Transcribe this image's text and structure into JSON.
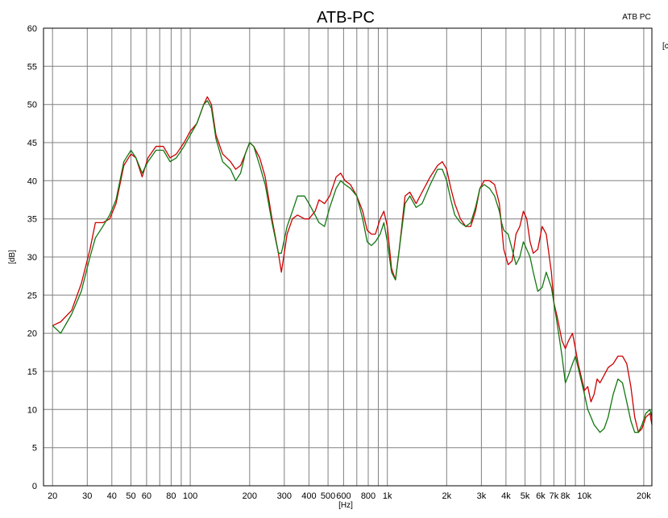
{
  "chart_data": {
    "type": "line",
    "title": "ATB-PC",
    "legend_text": "ATB PC",
    "legend_fragment": "[c",
    "xlabel": "[Hz]",
    "ylabel": "[dB]",
    "x_scale": "log",
    "xlim": [
      18,
      22000
    ],
    "ylim": [
      0,
      60
    ],
    "grid": true,
    "x_ticks": [
      {
        "value": 20,
        "label": "20"
      },
      {
        "value": 30,
        "label": "30"
      },
      {
        "value": 40,
        "label": "40"
      },
      {
        "value": 50,
        "label": "50"
      },
      {
        "value": 60,
        "label": "60"
      },
      {
        "value": 80,
        "label": "80"
      },
      {
        "value": 100,
        "label": "100"
      },
      {
        "value": 200,
        "label": "200"
      },
      {
        "value": 300,
        "label": "300"
      },
      {
        "value": 400,
        "label": "400"
      },
      {
        "value": 500,
        "label": "500"
      },
      {
        "value": 600,
        "label": "600"
      },
      {
        "value": 800,
        "label": "800"
      },
      {
        "value": 1000,
        "label": "1k"
      },
      {
        "value": 2000,
        "label": "2k"
      },
      {
        "value": 3000,
        "label": "3k"
      },
      {
        "value": 4000,
        "label": "4k"
      },
      {
        "value": 5000,
        "label": "5k"
      },
      {
        "value": 6000,
        "label": "6k"
      },
      {
        "value": 7000,
        "label": "7k"
      },
      {
        "value": 8000,
        "label": "8k"
      },
      {
        "value": 10000,
        "label": "10k"
      },
      {
        "value": 20000,
        "label": "20k"
      }
    ],
    "x_gridlines": [
      20,
      30,
      40,
      50,
      60,
      70,
      80,
      90,
      100,
      200,
      300,
      400,
      500,
      600,
      700,
      800,
      900,
      1000,
      2000,
      3000,
      4000,
      5000,
      6000,
      7000,
      8000,
      9000,
      10000,
      20000
    ],
    "y_ticks": [
      0,
      5,
      10,
      15,
      20,
      25,
      30,
      35,
      40,
      45,
      50,
      55,
      60
    ],
    "series": [
      {
        "color": "#cc0000",
        "points": [
          [
            20,
            21
          ],
          [
            22,
            21.5
          ],
          [
            25,
            23
          ],
          [
            28,
            26.5
          ],
          [
            31,
            31
          ],
          [
            33,
            34.5
          ],
          [
            36,
            34.5
          ],
          [
            39,
            35
          ],
          [
            42,
            37
          ],
          [
            46,
            42
          ],
          [
            50,
            43.5
          ],
          [
            53,
            43
          ],
          [
            57,
            40.5
          ],
          [
            61,
            43
          ],
          [
            67,
            44.5
          ],
          [
            73,
            44.5
          ],
          [
            79,
            43
          ],
          [
            85,
            43.5
          ],
          [
            93,
            45
          ],
          [
            100,
            46.5
          ],
          [
            108,
            47.5
          ],
          [
            117,
            50
          ],
          [
            122,
            51
          ],
          [
            128,
            50
          ],
          [
            135,
            46
          ],
          [
            146,
            43.5
          ],
          [
            160,
            42.5
          ],
          [
            170,
            41.5
          ],
          [
            180,
            42
          ],
          [
            190,
            43.5
          ],
          [
            200,
            45
          ],
          [
            210,
            44.5
          ],
          [
            225,
            43
          ],
          [
            240,
            40.5
          ],
          [
            260,
            35
          ],
          [
            280,
            30.5
          ],
          [
            290,
            28
          ],
          [
            310,
            33
          ],
          [
            330,
            35
          ],
          [
            350,
            35.5
          ],
          [
            380,
            35
          ],
          [
            400,
            35
          ],
          [
            430,
            36
          ],
          [
            450,
            37.5
          ],
          [
            480,
            37
          ],
          [
            510,
            38
          ],
          [
            550,
            40.5
          ],
          [
            580,
            41
          ],
          [
            610,
            40
          ],
          [
            650,
            39.5
          ],
          [
            700,
            38
          ],
          [
            750,
            36
          ],
          [
            790,
            33.5
          ],
          [
            830,
            33
          ],
          [
            870,
            33
          ],
          [
            920,
            35
          ],
          [
            960,
            36
          ],
          [
            1000,
            34
          ],
          [
            1050,
            28.5
          ],
          [
            1100,
            27
          ],
          [
            1150,
            31
          ],
          [
            1230,
            38
          ],
          [
            1300,
            38.5
          ],
          [
            1400,
            37
          ],
          [
            1500,
            38.5
          ],
          [
            1650,
            40.5
          ],
          [
            1800,
            42
          ],
          [
            1900,
            42.5
          ],
          [
            2000,
            41.5
          ],
          [
            2100,
            39
          ],
          [
            2200,
            37
          ],
          [
            2350,
            35
          ],
          [
            2500,
            34
          ],
          [
            2650,
            34
          ],
          [
            2800,
            36
          ],
          [
            2950,
            39
          ],
          [
            3100,
            40
          ],
          [
            3300,
            40
          ],
          [
            3500,
            39.5
          ],
          [
            3700,
            37
          ],
          [
            3800,
            34
          ],
          [
            3900,
            31
          ],
          [
            4100,
            29
          ],
          [
            4300,
            29.5
          ],
          [
            4500,
            33
          ],
          [
            4700,
            34
          ],
          [
            4900,
            36
          ],
          [
            5100,
            35
          ],
          [
            5300,
            32
          ],
          [
            5500,
            30.5
          ],
          [
            5800,
            31
          ],
          [
            6100,
            34
          ],
          [
            6400,
            33
          ],
          [
            6800,
            28
          ],
          [
            7000,
            24
          ],
          [
            7300,
            22
          ],
          [
            7700,
            19
          ],
          [
            8000,
            18
          ],
          [
            8300,
            19
          ],
          [
            8700,
            20
          ],
          [
            9000,
            18
          ],
          [
            9300,
            16
          ],
          [
            9700,
            14
          ],
          [
            10000,
            12.5
          ],
          [
            10400,
            13
          ],
          [
            10800,
            11
          ],
          [
            11200,
            12
          ],
          [
            11600,
            14
          ],
          [
            12000,
            13.5
          ],
          [
            12600,
            14.5
          ],
          [
            13200,
            15.5
          ],
          [
            14000,
            16
          ],
          [
            14800,
            17
          ],
          [
            15600,
            17
          ],
          [
            16400,
            16
          ],
          [
            17200,
            13
          ],
          [
            18000,
            9
          ],
          [
            18800,
            7
          ],
          [
            19600,
            7.5
          ],
          [
            20500,
            9
          ],
          [
            21500,
            9.5
          ],
          [
            22000,
            8
          ]
        ]
      },
      {
        "color": "#117711",
        "points": [
          [
            20,
            21
          ],
          [
            22,
            20
          ],
          [
            25,
            22.5
          ],
          [
            28,
            25.5
          ],
          [
            31,
            30
          ],
          [
            33,
            32.5
          ],
          [
            36,
            34
          ],
          [
            39,
            35.5
          ],
          [
            42,
            37.5
          ],
          [
            46,
            42.5
          ],
          [
            50,
            44
          ],
          [
            53,
            43
          ],
          [
            57,
            41
          ],
          [
            61,
            42.5
          ],
          [
            67,
            44
          ],
          [
            73,
            44
          ],
          [
            79,
            42.5
          ],
          [
            85,
            43
          ],
          [
            93,
            44.5
          ],
          [
            100,
            46
          ],
          [
            108,
            47.5
          ],
          [
            117,
            50
          ],
          [
            122,
            50.5
          ],
          [
            128,
            49.5
          ],
          [
            135,
            45.5
          ],
          [
            146,
            42.5
          ],
          [
            160,
            41.5
          ],
          [
            170,
            40
          ],
          [
            180,
            41
          ],
          [
            190,
            43.5
          ],
          [
            200,
            45
          ],
          [
            210,
            44.5
          ],
          [
            225,
            42
          ],
          [
            240,
            39.5
          ],
          [
            260,
            34.5
          ],
          [
            280,
            30.5
          ],
          [
            290,
            30.5
          ],
          [
            310,
            34
          ],
          [
            330,
            36
          ],
          [
            350,
            38
          ],
          [
            380,
            38
          ],
          [
            400,
            37
          ],
          [
            430,
            35.5
          ],
          [
            450,
            34.5
          ],
          [
            480,
            34
          ],
          [
            510,
            36.5
          ],
          [
            550,
            39
          ],
          [
            580,
            40
          ],
          [
            610,
            39.5
          ],
          [
            650,
            39
          ],
          [
            700,
            38
          ],
          [
            750,
            35
          ],
          [
            790,
            32
          ],
          [
            830,
            31.5
          ],
          [
            870,
            32
          ],
          [
            920,
            33
          ],
          [
            960,
            34.5
          ],
          [
            1000,
            32
          ],
          [
            1050,
            28
          ],
          [
            1100,
            27
          ],
          [
            1150,
            31
          ],
          [
            1230,
            37
          ],
          [
            1300,
            38
          ],
          [
            1400,
            36.5
          ],
          [
            1500,
            37
          ],
          [
            1650,
            39.5
          ],
          [
            1800,
            41.5
          ],
          [
            1900,
            41.5
          ],
          [
            2000,
            40
          ],
          [
            2100,
            37.5
          ],
          [
            2200,
            35.5
          ],
          [
            2350,
            34.5
          ],
          [
            2500,
            34
          ],
          [
            2650,
            34.5
          ],
          [
            2800,
            36.5
          ],
          [
            2950,
            39
          ],
          [
            3100,
            39.5
          ],
          [
            3300,
            39
          ],
          [
            3500,
            38
          ],
          [
            3700,
            36
          ],
          [
            3800,
            34.5
          ],
          [
            3900,
            33.5
          ],
          [
            4100,
            33
          ],
          [
            4300,
            31
          ],
          [
            4500,
            29
          ],
          [
            4700,
            30
          ],
          [
            4900,
            32
          ],
          [
            5100,
            31
          ],
          [
            5300,
            30
          ],
          [
            5500,
            28
          ],
          [
            5800,
            25.5
          ],
          [
            6100,
            26
          ],
          [
            6400,
            28
          ],
          [
            6800,
            26
          ],
          [
            7000,
            24
          ],
          [
            7300,
            21
          ],
          [
            7700,
            17
          ],
          [
            8000,
            13.5
          ],
          [
            8300,
            14.5
          ],
          [
            8700,
            16
          ],
          [
            9000,
            17
          ],
          [
            9300,
            15.5
          ],
          [
            9700,
            13.5
          ],
          [
            10000,
            12
          ],
          [
            10400,
            10
          ],
          [
            10800,
            9
          ],
          [
            11200,
            8
          ],
          [
            11600,
            7.5
          ],
          [
            12000,
            7
          ],
          [
            12600,
            7.5
          ],
          [
            13200,
            9
          ],
          [
            14000,
            12
          ],
          [
            14800,
            14
          ],
          [
            15600,
            13.5
          ],
          [
            16400,
            11
          ],
          [
            17200,
            8.5
          ],
          [
            18000,
            7
          ],
          [
            18800,
            7
          ],
          [
            19600,
            8
          ],
          [
            20500,
            9.5
          ],
          [
            21500,
            10
          ],
          [
            22000,
            9
          ]
        ]
      }
    ]
  }
}
